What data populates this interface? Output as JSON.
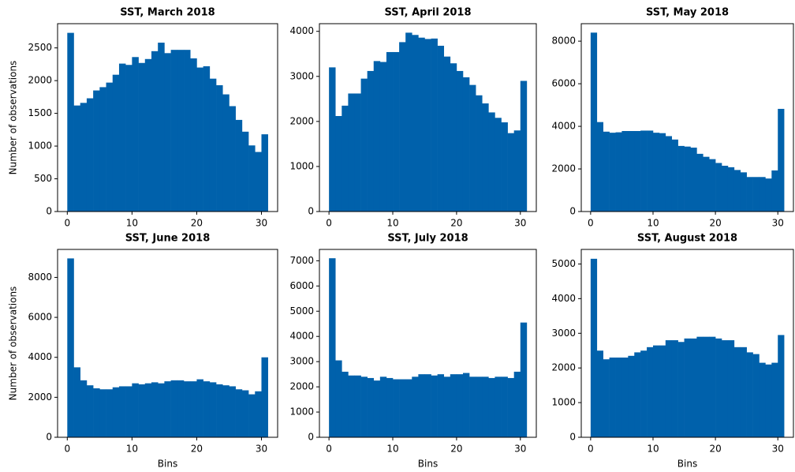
{
  "chart_data": [
    {
      "type": "histogram",
      "title": "SST, March 2018",
      "ylabel": "Number of observations",
      "color": "#0061ab",
      "bins": [
        0,
        1,
        2,
        3,
        4,
        5,
        6,
        7,
        8,
        9,
        10,
        11,
        12,
        13,
        14,
        15,
        16,
        17,
        18,
        19,
        20,
        21,
        22,
        23,
        24,
        25,
        26,
        27,
        28,
        29,
        30,
        31
      ],
      "values": [
        2730,
        1620,
        1660,
        1730,
        1850,
        1900,
        1970,
        2090,
        2260,
        2240,
        2360,
        2270,
        2330,
        2450,
        2580,
        2420,
        2470,
        2470,
        2470,
        2340,
        2200,
        2220,
        2030,
        1930,
        1790,
        1610,
        1400,
        1220,
        1010,
        910,
        1180
      ],
      "xlim": [
        -1.5,
        32.5
      ],
      "ylim": [
        0,
        2870
      ],
      "xticks": [
        0,
        10,
        20,
        30
      ],
      "yticks": [
        0,
        500,
        1000,
        1500,
        2000,
        2500
      ]
    },
    {
      "type": "histogram",
      "title": "SST, April 2018",
      "color": "#0061ab",
      "bins": [
        0,
        1,
        2,
        3,
        4,
        5,
        6,
        7,
        8,
        9,
        10,
        11,
        12,
        13,
        14,
        15,
        16,
        17,
        18,
        19,
        20,
        21,
        22,
        23,
        24,
        25,
        26,
        27,
        28,
        29,
        30,
        31
      ],
      "values": [
        3200,
        2120,
        2350,
        2620,
        2620,
        2950,
        3120,
        3340,
        3320,
        3540,
        3540,
        3760,
        3970,
        3920,
        3860,
        3830,
        3840,
        3680,
        3440,
        3290,
        3120,
        2980,
        2810,
        2580,
        2400,
        2200,
        2080,
        1980,
        1740,
        1800,
        2900
      ],
      "xlim": [
        -1.5,
        32.5
      ],
      "ylim": [
        0,
        4170
      ],
      "xticks": [
        0,
        10,
        20,
        30
      ],
      "yticks": [
        0,
        1000,
        2000,
        3000,
        4000
      ]
    },
    {
      "type": "histogram",
      "title": "SST, May 2018",
      "color": "#0061ab",
      "bins": [
        0,
        1,
        2,
        3,
        4,
        5,
        6,
        7,
        8,
        9,
        10,
        11,
        12,
        13,
        14,
        15,
        16,
        17,
        18,
        19,
        20,
        21,
        22,
        23,
        24,
        25,
        26,
        27,
        28,
        29,
        30,
        31
      ],
      "values": [
        8400,
        4200,
        3750,
        3700,
        3720,
        3780,
        3780,
        3780,
        3800,
        3800,
        3700,
        3680,
        3540,
        3380,
        3080,
        3050,
        3000,
        2710,
        2570,
        2460,
        2280,
        2150,
        2080,
        1950,
        1840,
        1620,
        1620,
        1620,
        1550,
        1930,
        4820
      ],
      "xlim": [
        -1.5,
        32.5
      ],
      "ylim": [
        0,
        8820
      ],
      "xticks": [
        0,
        10,
        20,
        30
      ],
      "yticks": [
        0,
        2000,
        4000,
        6000,
        8000
      ]
    },
    {
      "type": "histogram",
      "title": "SST, June 2018",
      "xlabel": "Bins",
      "ylabel": "Number of observations",
      "color": "#0061ab",
      "bins": [
        0,
        1,
        2,
        3,
        4,
        5,
        6,
        7,
        8,
        9,
        10,
        11,
        12,
        13,
        14,
        15,
        16,
        17,
        18,
        19,
        20,
        21,
        22,
        23,
        24,
        25,
        26,
        27,
        28,
        29,
        30,
        31
      ],
      "values": [
        8950,
        3500,
        2850,
        2600,
        2450,
        2400,
        2400,
        2500,
        2550,
        2550,
        2700,
        2650,
        2700,
        2750,
        2700,
        2800,
        2850,
        2850,
        2800,
        2800,
        2900,
        2800,
        2750,
        2650,
        2600,
        2550,
        2400,
        2350,
        2150,
        2300,
        4000
      ],
      "xlim": [
        -1.5,
        32.5
      ],
      "ylim": [
        0,
        9400
      ],
      "xticks": [
        0,
        10,
        20,
        30
      ],
      "yticks": [
        0,
        2000,
        4000,
        6000,
        8000
      ]
    },
    {
      "type": "histogram",
      "title": "SST, July 2018",
      "xlabel": "Bins",
      "color": "#0061ab",
      "bins": [
        0,
        1,
        2,
        3,
        4,
        5,
        6,
        7,
        8,
        9,
        10,
        11,
        12,
        13,
        14,
        15,
        16,
        17,
        18,
        19,
        20,
        21,
        22,
        23,
        24,
        25,
        26,
        27,
        28,
        29,
        30,
        31
      ],
      "values": [
        7100,
        3050,
        2600,
        2450,
        2450,
        2400,
        2350,
        2250,
        2400,
        2350,
        2300,
        2300,
        2300,
        2400,
        2500,
        2500,
        2450,
        2500,
        2400,
        2500,
        2500,
        2550,
        2400,
        2400,
        2400,
        2350,
        2400,
        2400,
        2350,
        2600,
        4550
      ],
      "xlim": [
        -1.5,
        32.5
      ],
      "ylim": [
        0,
        7450
      ],
      "xticks": [
        0,
        10,
        20,
        30
      ],
      "yticks": [
        0,
        1000,
        2000,
        3000,
        4000,
        5000,
        6000,
        7000
      ]
    },
    {
      "type": "histogram",
      "title": "SST, August 2018",
      "xlabel": "Bins",
      "color": "#0061ab",
      "bins": [
        0,
        1,
        2,
        3,
        4,
        5,
        6,
        7,
        8,
        9,
        10,
        11,
        12,
        13,
        14,
        15,
        16,
        17,
        18,
        19,
        20,
        21,
        22,
        23,
        24,
        25,
        26,
        27,
        28,
        29,
        30,
        31
      ],
      "values": [
        5150,
        2500,
        2250,
        2300,
        2300,
        2300,
        2350,
        2450,
        2500,
        2600,
        2650,
        2650,
        2800,
        2800,
        2750,
        2850,
        2850,
        2900,
        2900,
        2900,
        2850,
        2800,
        2800,
        2600,
        2600,
        2450,
        2400,
        2150,
        2100,
        2150,
        2950
      ],
      "xlim": [
        -1.5,
        32.5
      ],
      "ylim": [
        0,
        5420
      ],
      "xticks": [
        0,
        10,
        20,
        30
      ],
      "yticks": [
        0,
        1000,
        2000,
        3000,
        4000,
        5000
      ]
    }
  ]
}
